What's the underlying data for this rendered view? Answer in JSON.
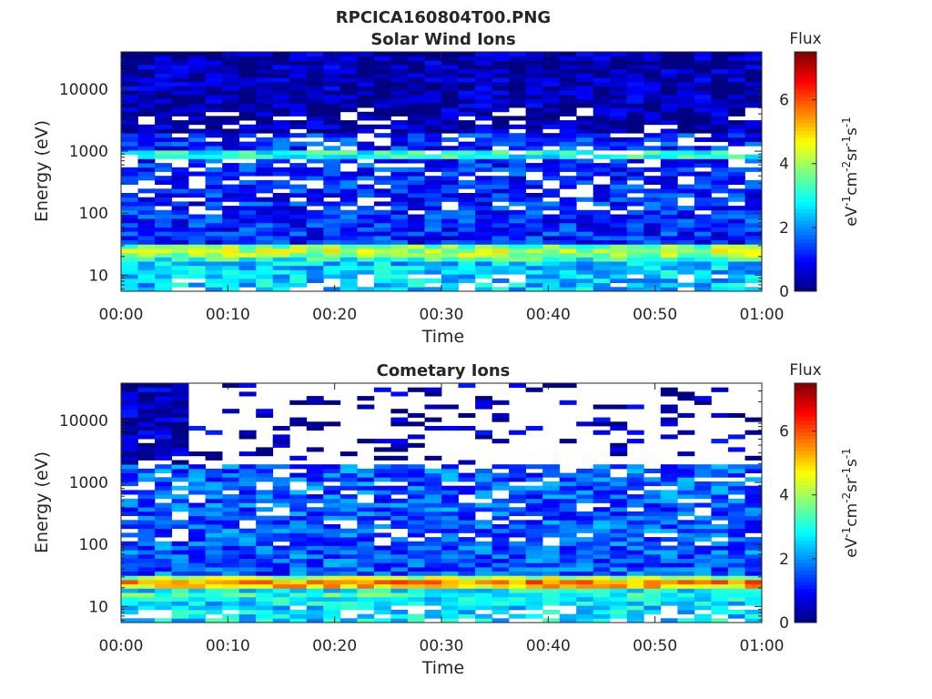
{
  "figure_title": "RPCICA160804T00.PNG",
  "chart_data": [
    {
      "type": "heatmap",
      "title": "Solar Wind Ions",
      "xlabel": "Time",
      "ylabel": "Energy (eV)",
      "x_ticks": [
        "00:00",
        "00:10",
        "00:20",
        "00:30",
        "00:40",
        "00:50",
        "01:00"
      ],
      "y_ticks": [
        "10",
        "100",
        "1000",
        "10000"
      ],
      "y_scale": "log",
      "ylim": [
        5.5,
        40000
      ],
      "colorbar": {
        "label": "Flux",
        "unit_base": "eV",
        "ticks": [
          "0",
          "2",
          "4",
          "6"
        ],
        "range": [
          0,
          7.5
        ],
        "colormap": "jet"
      },
      "profile": {
        "bands": [
          {
            "center_log": 1.38,
            "width_log": 0.14,
            "level": 4.2
          },
          {
            "center_log": 2.95,
            "width_log": 0.08,
            "level": 3.2
          }
        ],
        "background_level": 1.2,
        "high_energy_level": 0.3,
        "low_band_level": 2.4
      }
    },
    {
      "type": "heatmap",
      "title": "Cometary Ions",
      "xlabel": "Time",
      "ylabel": "Energy (eV)",
      "x_ticks": [
        "00:00",
        "00:10",
        "00:20",
        "00:30",
        "00:40",
        "00:50",
        "01:00"
      ],
      "y_ticks": [
        "10",
        "100",
        "1000",
        "10000"
      ],
      "y_scale": "log",
      "ylim": [
        5.5,
        40000
      ],
      "colorbar": {
        "label": "Flux",
        "unit_base": "eV",
        "ticks": [
          "0",
          "2",
          "4",
          "6"
        ],
        "range": [
          0,
          7.5
        ],
        "colormap": "jet"
      },
      "profile": {
        "bands": [
          {
            "center_log": 1.38,
            "width_log": 0.1,
            "level": 5.6
          },
          {
            "center_log": 1.2,
            "width_log": 0.08,
            "level": 3.2
          }
        ],
        "background_level": 1.6,
        "high_energy_level": 0.4,
        "low_band_level": 2.6
      }
    }
  ]
}
